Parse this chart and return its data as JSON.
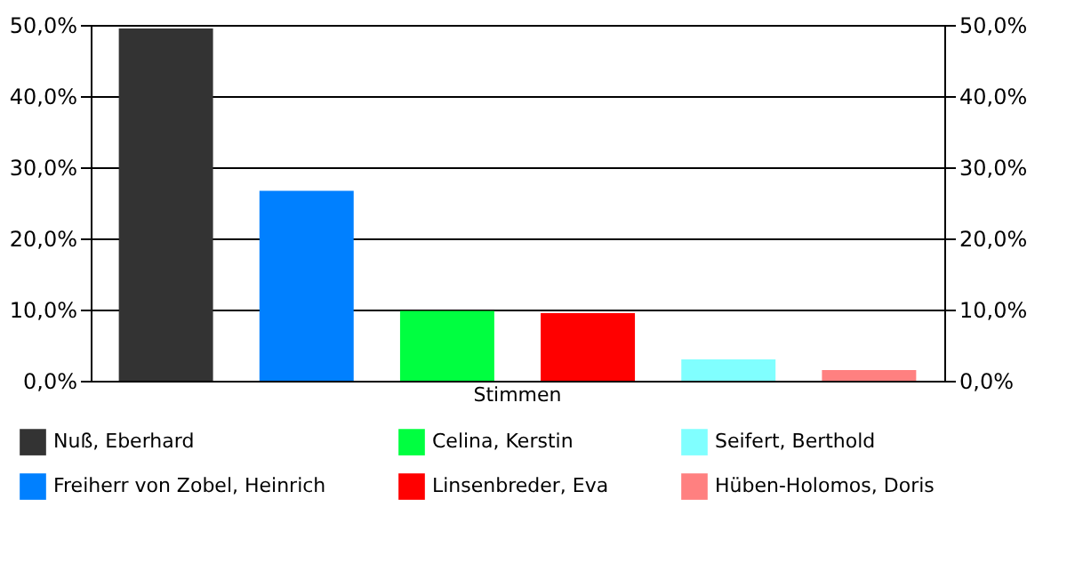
{
  "chart_data": {
    "type": "bar",
    "categories": [
      "Stimmen"
    ],
    "series": [
      {
        "name": "Nuß, Eberhard",
        "color": "#333333",
        "values": [
          49.5
        ]
      },
      {
        "name": "Freiherr von Zobel, Heinrich",
        "color": "#0080ff",
        "values": [
          26.7
        ]
      },
      {
        "name": "Celina, Kerstin",
        "color": "#00ff40",
        "values": [
          9.8
        ]
      },
      {
        "name": "Linsenbreder, Eva",
        "color": "#ff0000",
        "values": [
          9.5
        ]
      },
      {
        "name": "Seifert, Berthold",
        "color": "#80ffff",
        "values": [
          3.0
        ]
      },
      {
        "name": "Hüben-Holomos, Doris",
        "color": "#ff8080",
        "values": [
          1.5
        ]
      }
    ],
    "ylim": [
      0,
      50
    ],
    "yticks": [
      {
        "value": 0,
        "label": "0,0%"
      },
      {
        "value": 10,
        "label": "10,0%"
      },
      {
        "value": 20,
        "label": "20,0%"
      },
      {
        "value": 30,
        "label": "30,0%"
      },
      {
        "value": 40,
        "label": "40,0%"
      },
      {
        "value": 50,
        "label": "50,0%"
      }
    ],
    "grid": "y",
    "legend": "bottom"
  }
}
